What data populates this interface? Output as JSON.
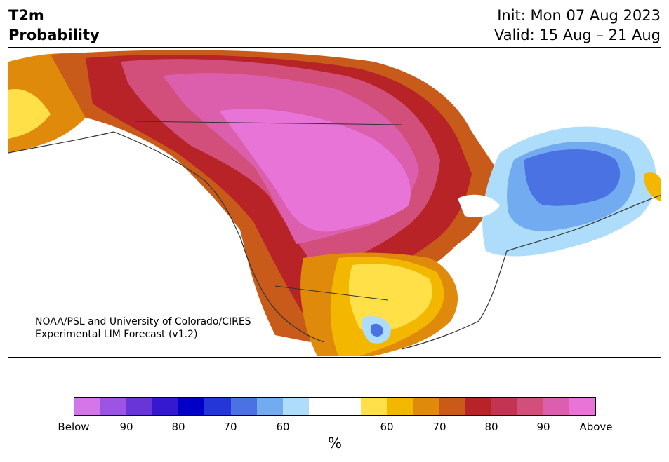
{
  "header": {
    "title_line1": "T2m",
    "title_line2": "Probability",
    "init": "Init: Mon 07 Aug 2023",
    "valid": "Valid: 15 Aug – 21 Aug"
  },
  "map": {
    "region": "North America",
    "credit_line1": "NOAA/PSL and University of Colorado/CIRES",
    "credit_line2": "Experimental LIM Forecast (v1.2)"
  },
  "colorbar": {
    "colors": [
      "#d575ea",
      "#9b55e2",
      "#6a35d8",
      "#3419d1",
      "#0000c8",
      "#2436d8",
      "#4a72e2",
      "#73abf0",
      "#aedcfb",
      "#ffffff",
      "#ffffff",
      "#ffe049",
      "#f4b700",
      "#e08a0c",
      "#c85a1a",
      "#b82327",
      "#c23452",
      "#d24f7c",
      "#dc5fae",
      "#e874d8"
    ],
    "tick_labels": [
      "Below",
      "90",
      "80",
      "70",
      "60",
      "60",
      "70",
      "80",
      "90",
      "Above"
    ],
    "unit": "%"
  }
}
